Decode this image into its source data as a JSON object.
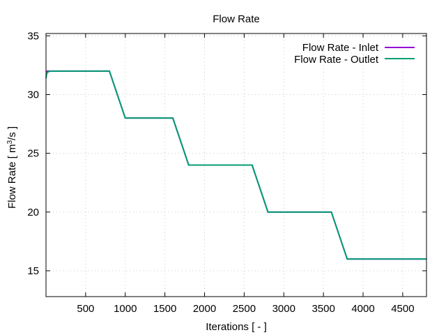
{
  "chart_data": {
    "type": "line",
    "title": "Flow Rate",
    "xlabel": "Iterations [ - ]",
    "ylabel_main": "Flow Rate [ m",
    "ylabel_sup": "3",
    "ylabel_tail": "/s ]",
    "xlim": [
      0,
      4800
    ],
    "ylim": [
      12.8,
      35.2
    ],
    "xticks": [
      500,
      1000,
      1500,
      2000,
      2500,
      3000,
      3500,
      4000,
      4500
    ],
    "yticks": [
      15,
      20,
      25,
      30,
      35
    ],
    "grid": true,
    "legend_position": "top-right",
    "series": [
      {
        "name": "Flow Rate - Inlet",
        "color": "#9400d3",
        "x": [
          0,
          20,
          60,
          600,
          800,
          1000,
          1600,
          1800,
          2600,
          2800,
          3600,
          3800,
          4800
        ],
        "y": [
          31.95,
          32.0,
          32.0,
          32.0,
          32.0,
          28.0,
          28.0,
          24.0,
          24.0,
          20.0,
          20.0,
          16.0,
          16.0
        ]
      },
      {
        "name": "Flow Rate - Outlet",
        "color": "#009e73",
        "x": [
          0,
          10,
          30,
          60,
          600,
          800,
          1000,
          1600,
          1800,
          2600,
          2800,
          3600,
          3800,
          4800
        ],
        "y": [
          31.4,
          31.8,
          31.95,
          32.0,
          32.0,
          32.0,
          28.0,
          28.0,
          24.0,
          24.0,
          20.0,
          20.0,
          16.0,
          16.0
        ]
      }
    ]
  }
}
